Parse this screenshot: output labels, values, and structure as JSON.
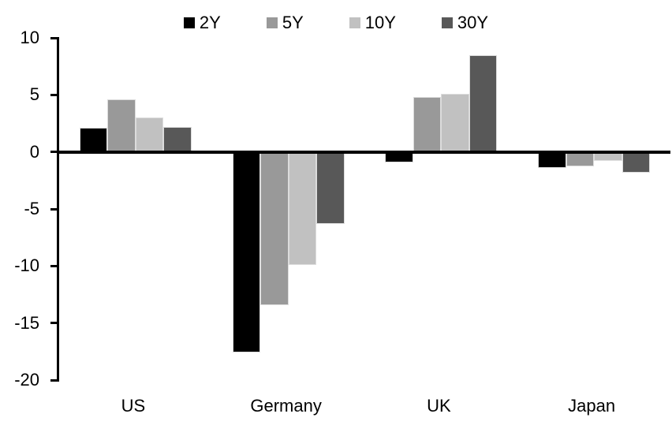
{
  "chart_data": {
    "type": "bar",
    "title": "",
    "xlabel": "",
    "ylabel": "",
    "categories": [
      "US",
      "Germany",
      "UK",
      "Japan"
    ],
    "series": [
      {
        "name": "2Y",
        "color": "#000000",
        "values": [
          2.1,
          -17.6,
          -0.9,
          -1.4
        ]
      },
      {
        "name": "5Y",
        "color": "#999999",
        "values": [
          4.6,
          -13.4,
          4.8,
          -1.3
        ]
      },
      {
        "name": "10Y",
        "color": "#c1c1c1",
        "values": [
          3.0,
          -9.9,
          5.1,
          -0.8
        ]
      },
      {
        "name": "30Y",
        "color": "#585858",
        "values": [
          2.2,
          -6.3,
          8.5,
          -1.8
        ]
      }
    ],
    "ylim": [
      -20,
      10
    ],
    "y_ticks": [
      10,
      5,
      0,
      -5,
      -10,
      -15,
      -20
    ],
    "legend_position": "top",
    "grid": false
  }
}
